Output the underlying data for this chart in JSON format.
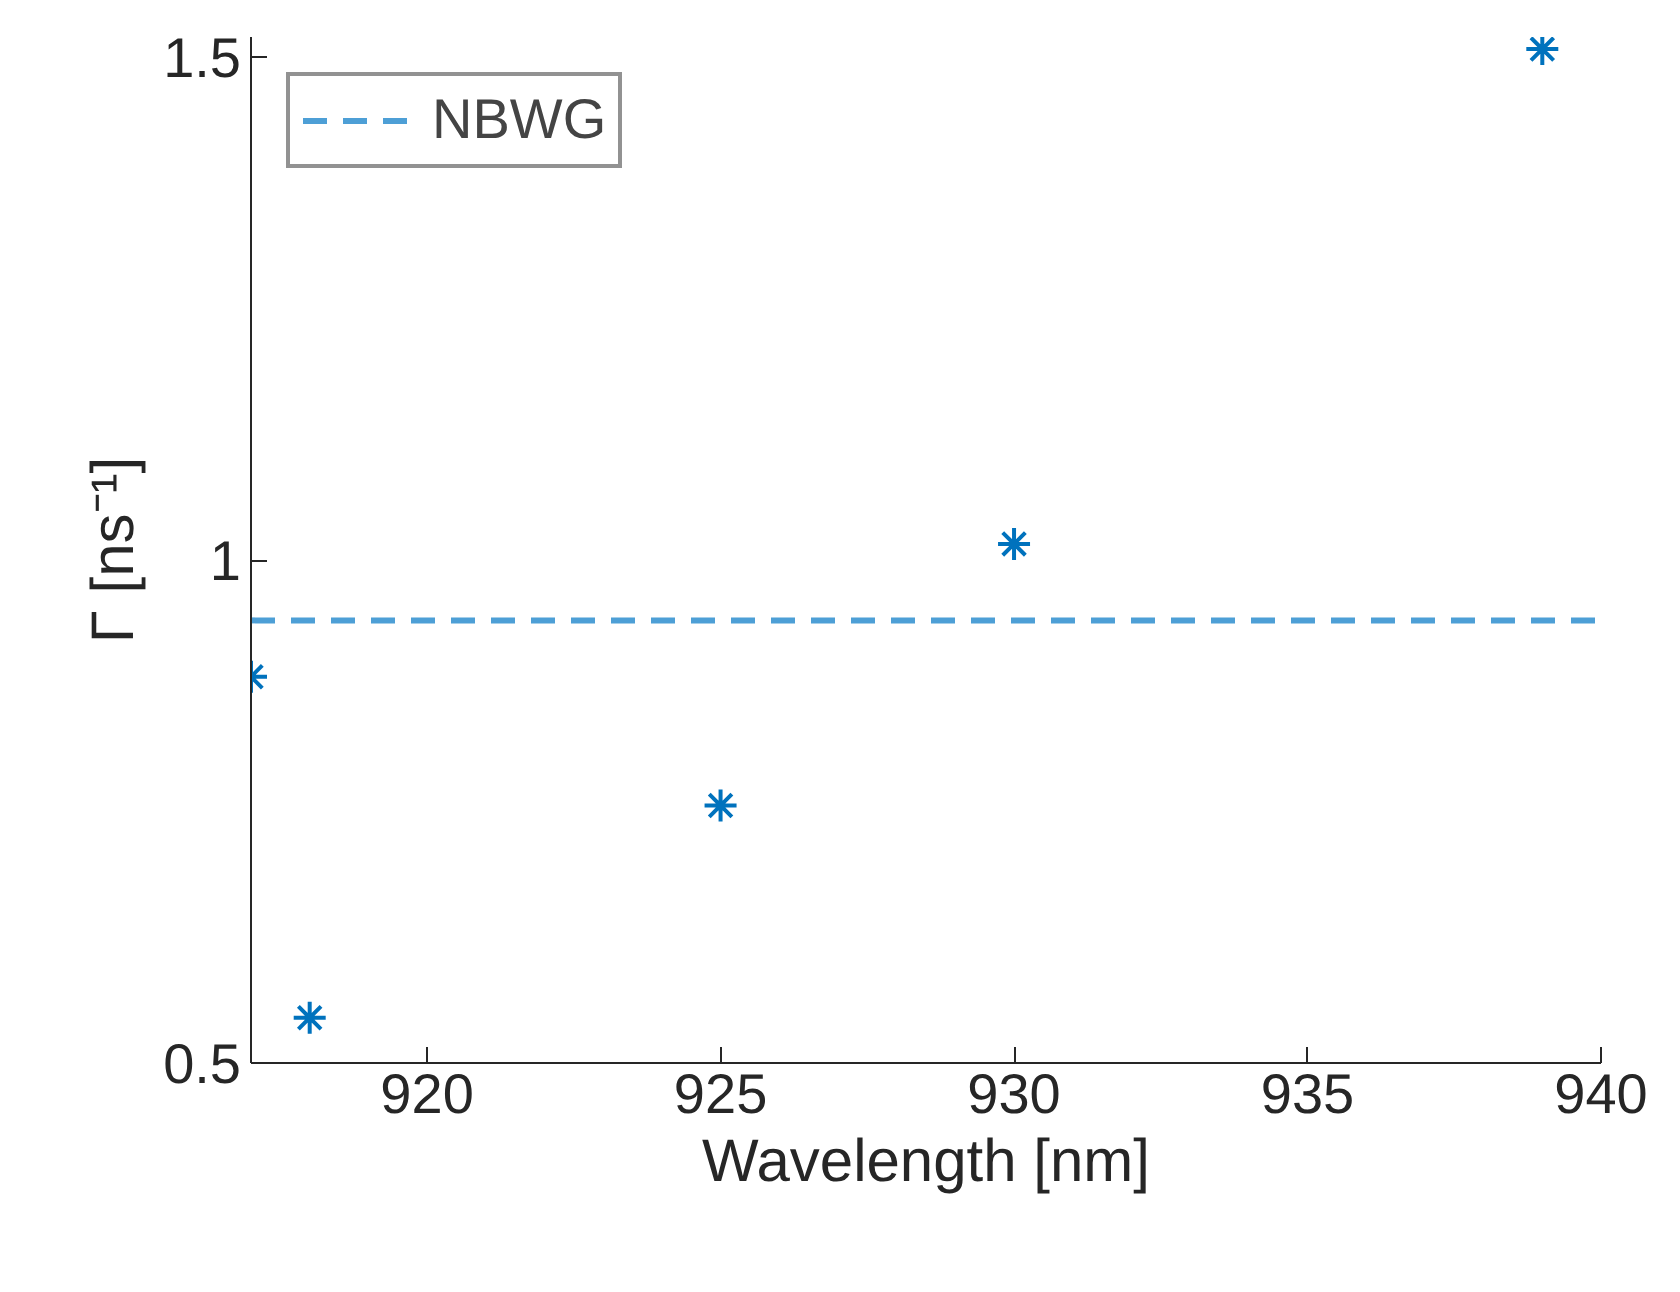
{
  "chart_data": {
    "type": "scatter",
    "xlabel": "Wavelength [nm]",
    "ylabel": "Γ [ns⁻¹]",
    "x": [
      917,
      918,
      925,
      930,
      939
    ],
    "series": [
      {
        "color": "#0072bd",
        "values": [
          0.884,
          0.545,
          0.756,
          1.016,
          1.508
        ]
      }
    ],
    "marker": "cross",
    "ref_lines": [
      {
        "axis": "y",
        "value": 0.94,
        "label": "NBWG",
        "color": "#4d9fd6",
        "line_style": "dashed"
      }
    ],
    "xlim": [
      917,
      940
    ],
    "ylim": [
      0.5,
      1.52
    ],
    "xticks": [
      920,
      925,
      930,
      935,
      940
    ],
    "yticks": [
      0.5,
      1,
      1.5
    ],
    "grid": false,
    "legend": "top left"
  }
}
